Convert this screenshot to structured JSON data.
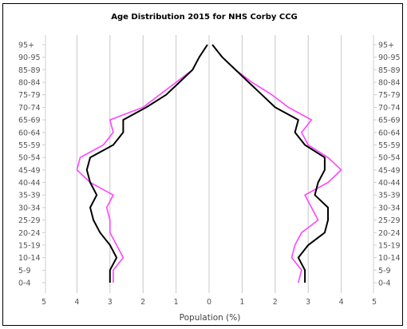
{
  "chart_data": {
    "type": "line",
    "title": "Age Distribution 2015 for NHS Corby CCG",
    "xlabel": "Population (%)",
    "ylabel": "",
    "xlim": [
      -5,
      5
    ],
    "x_ticks": [
      5,
      4,
      3,
      2,
      1,
      0,
      1,
      2,
      3,
      4,
      5
    ],
    "grid": true,
    "legend": "none",
    "categories": [
      "0-4",
      "5-9",
      "10-14",
      "15-19",
      "20-24",
      "25-29",
      "30-34",
      "35-39",
      "40-44",
      "45-49",
      "50-54",
      "55-59",
      "60-64",
      "65-69",
      "70-74",
      "75-79",
      "80-84",
      "85-89",
      "90-95",
      "95+"
    ],
    "series": [
      {
        "color": "#ff44ff",
        "left": [
          2.9,
          2.9,
          2.6,
          2.8,
          3.0,
          3.0,
          3.1,
          2.9,
          3.6,
          4.0,
          3.9,
          3.2,
          2.9,
          3.0,
          2.0,
          1.5,
          1.0,
          0.5,
          0.3,
          0.05
        ],
        "right": [
          2.7,
          2.8,
          2.5,
          2.6,
          2.8,
          3.3,
          3.1,
          2.9,
          3.6,
          4.0,
          3.6,
          3.0,
          2.8,
          3.1,
          2.4,
          1.9,
          1.3,
          0.8,
          0.4,
          0.1
        ]
      },
      {
        "color": "#000000",
        "left": [
          3.0,
          3.0,
          2.8,
          3.0,
          3.3,
          3.5,
          3.6,
          3.4,
          3.6,
          3.7,
          3.6,
          2.9,
          2.6,
          2.6,
          1.9,
          1.3,
          0.9,
          0.5,
          0.3,
          0.05
        ],
        "right": [
          2.9,
          2.9,
          2.7,
          3.0,
          3.5,
          3.6,
          3.6,
          3.2,
          3.3,
          3.5,
          3.5,
          2.9,
          2.6,
          2.7,
          2.0,
          1.6,
          1.2,
          0.8,
          0.4,
          0.1
        ]
      }
    ]
  }
}
